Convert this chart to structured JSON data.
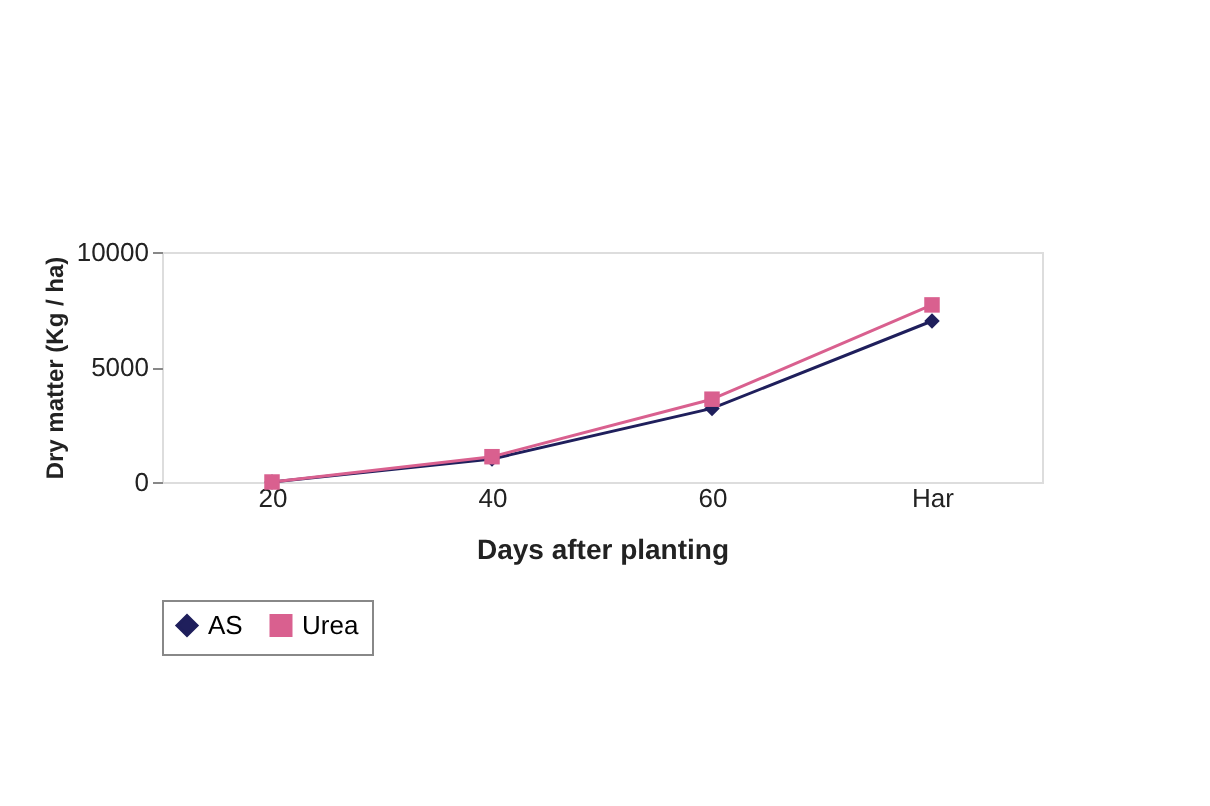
{
  "chart_data": {
    "type": "line",
    "xlabel": "Days after planting",
    "ylabel": "Dry matter (Kg / ha)",
    "categories": [
      "20",
      "40",
      "60",
      "Har"
    ],
    "series": [
      {
        "name": "AS",
        "color": "#1f1f5c",
        "marker": "diamond",
        "values": [
          0,
          1000,
          3200,
          7000
        ]
      },
      {
        "name": "Urea",
        "color": "#d9608f",
        "marker": "square",
        "values": [
          0,
          1100,
          3600,
          7700
        ]
      }
    ],
    "ylim": [
      0,
      10000
    ],
    "yticks": [
      0,
      5000,
      10000
    ],
    "grid": false,
    "legend": "bottom",
    "line_style": "solid"
  }
}
